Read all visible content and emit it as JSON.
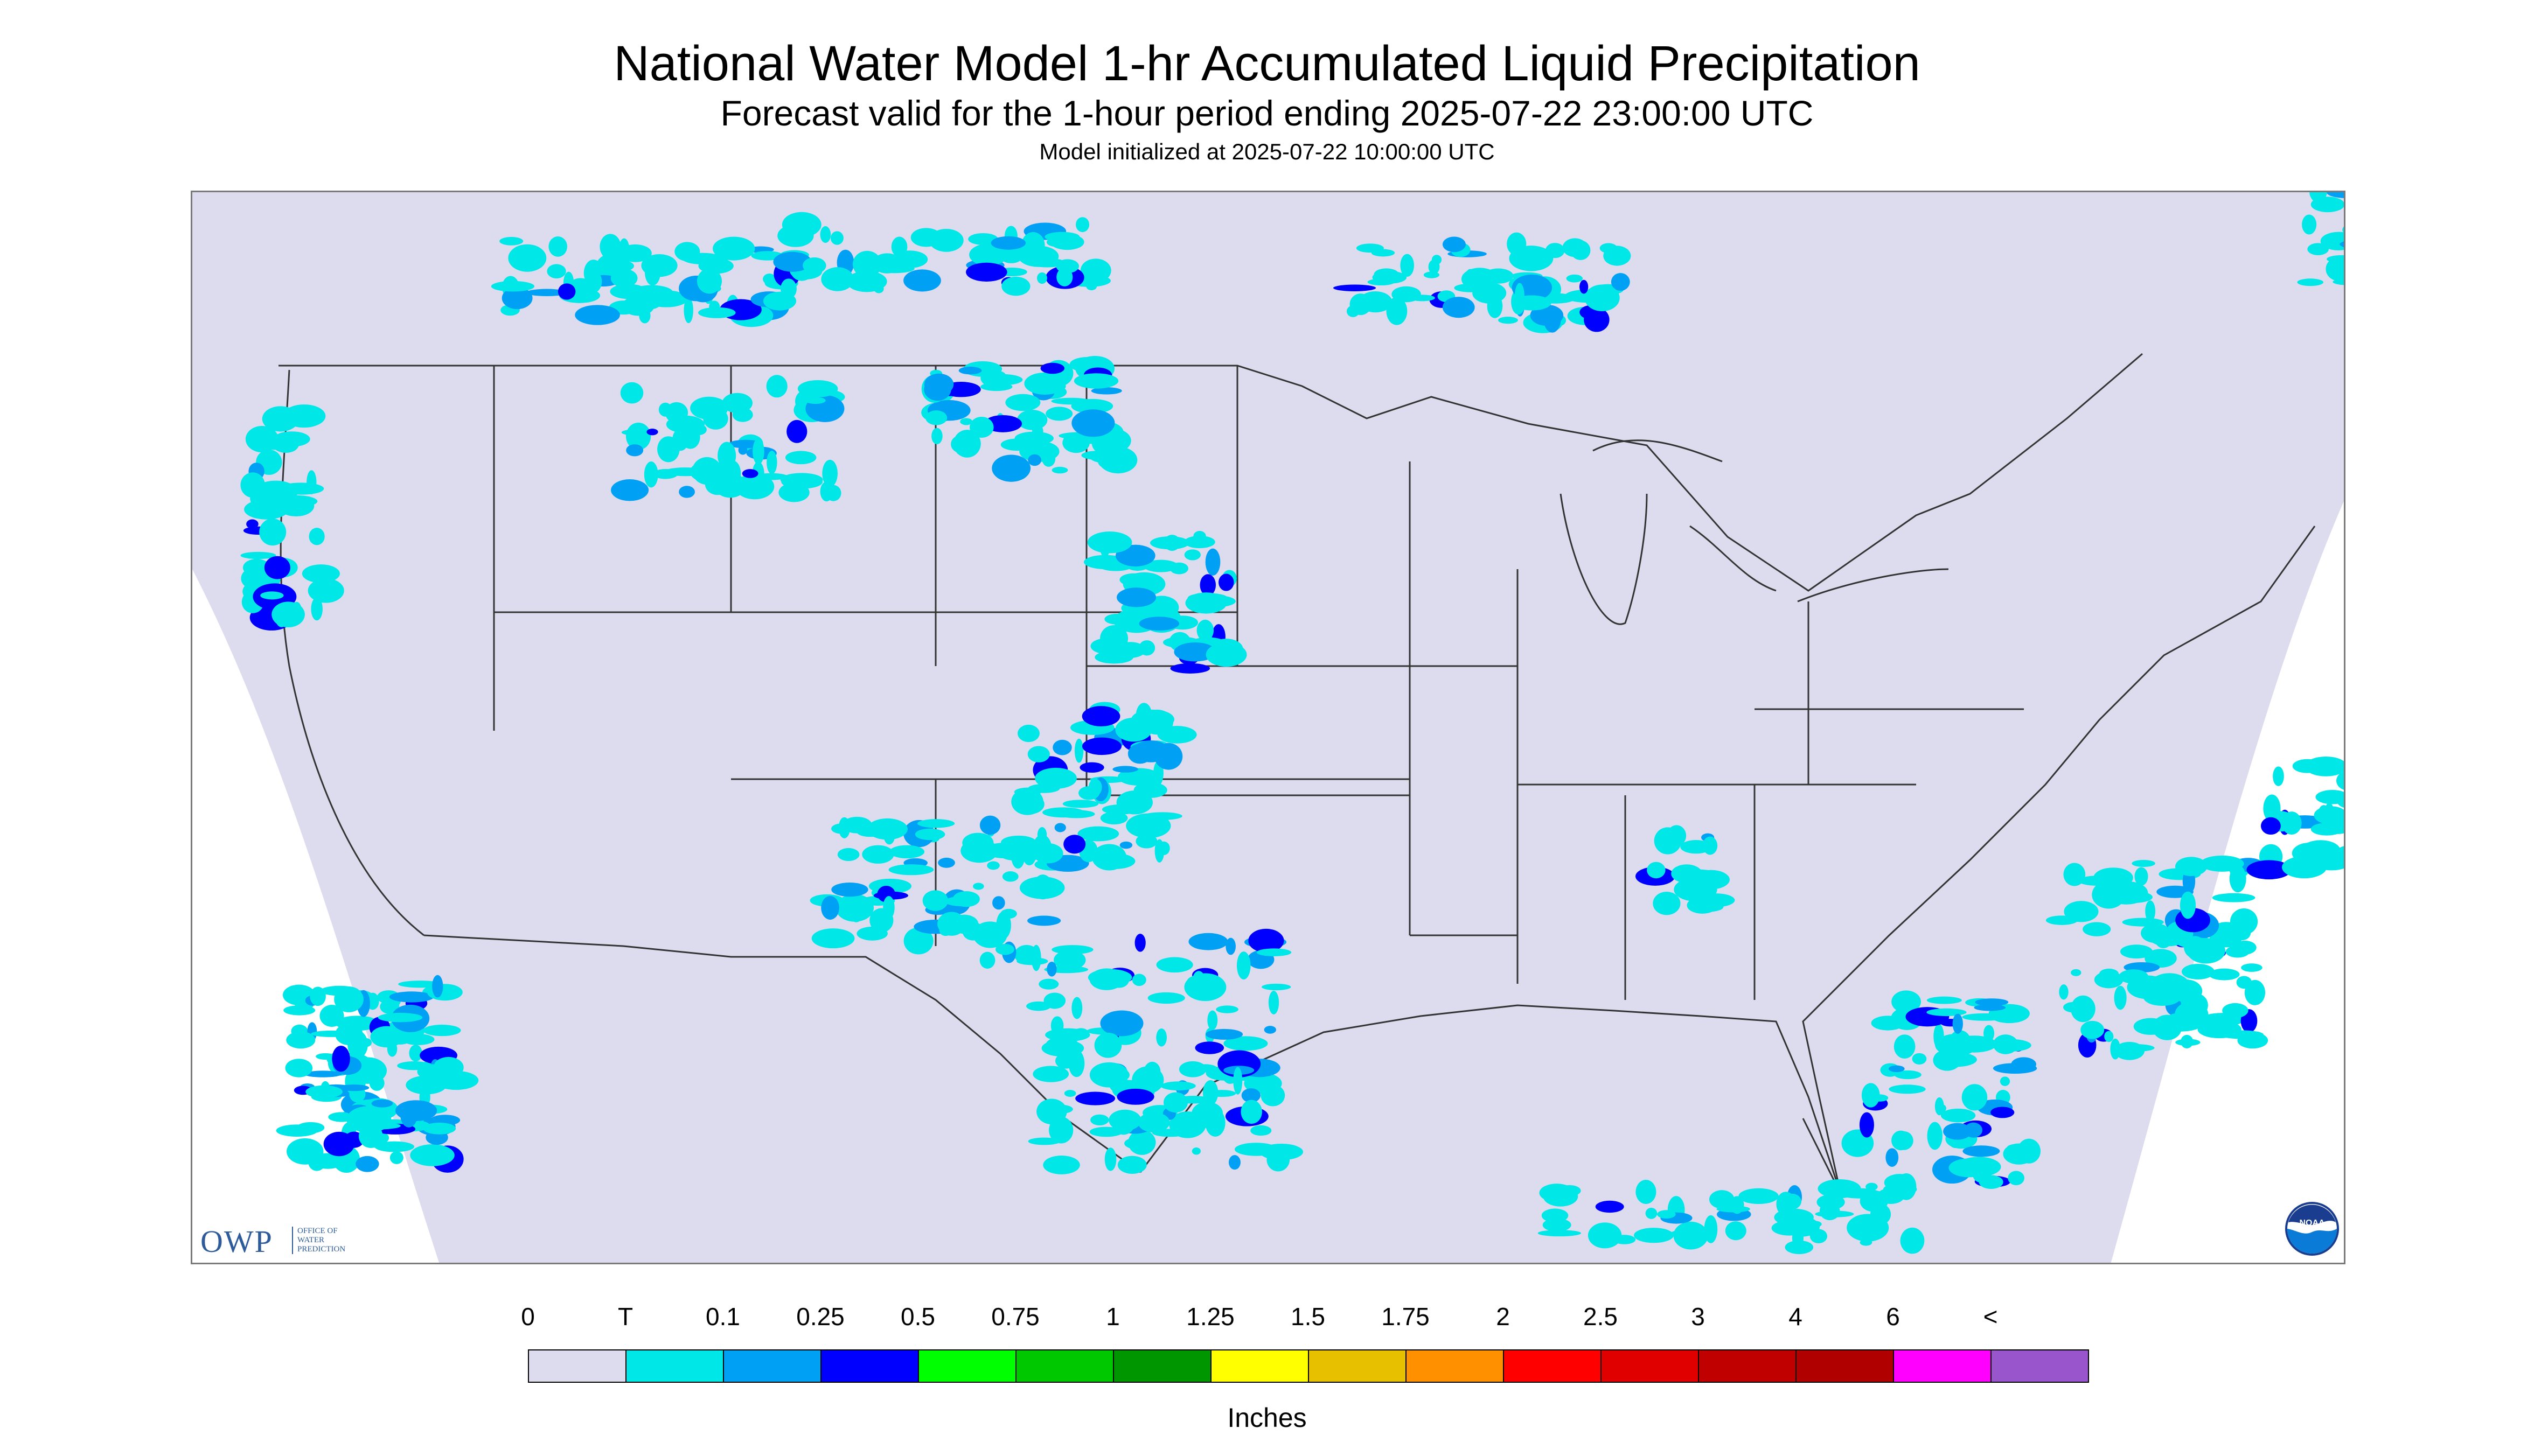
{
  "header": {
    "title": "National Water Model 1-hr Accumulated Liquid Precipitation",
    "subtitle": "Forecast valid for the 1-hour period ending 2025-07-22 23:00:00 UTC",
    "init": "Model initialized at 2025-07-22 10:00:00 UTC"
  },
  "map": {
    "background_color": "#dcdcee",
    "outside_color": "#ffffff",
    "border_color": "#333333",
    "light_precip_color": "#00e7e7",
    "moderate_precip_color": "#00a0f5",
    "heavy_precip_color": "#0000ff"
  },
  "logos": {
    "owp_text": "OWP",
    "owp_sub": [
      "OFFICE OF",
      "WATER",
      "PREDICTION"
    ],
    "noaa_text": "NOAA"
  },
  "legend": {
    "labels": [
      "0",
      "T",
      "0.1",
      "0.25",
      "0.5",
      "0.75",
      "1",
      "1.25",
      "1.5",
      "1.75",
      "2",
      "2.5",
      "3",
      "4",
      "6",
      "<"
    ],
    "colors": [
      "#dcdcee",
      "#00e7e7",
      "#00a0f5",
      "#0000ff",
      "#00ff00",
      "#00c800",
      "#009600",
      "#ffff00",
      "#e7c000",
      "#ff9000",
      "#ff0000",
      "#e00000",
      "#c00000",
      "#b00000",
      "#ff00ff",
      "#9955cc"
    ],
    "units": "Inches"
  }
}
